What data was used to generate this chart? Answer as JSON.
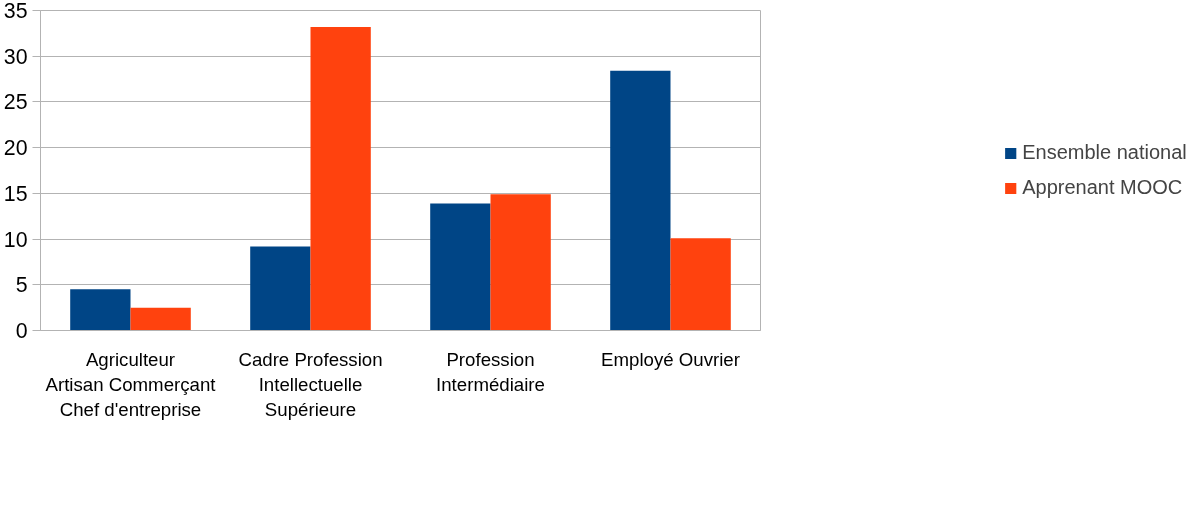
{
  "chart_data": {
    "type": "bar",
    "categories": [
      "Agriculteur Artisan Commerçant Chef d'entreprise",
      "Cadre Profession Intellectuelle Supérieure",
      "Profession Intermédiaire",
      "Employé Ouvrier"
    ],
    "series": [
      {
        "name": "Ensemble national",
        "color": "#004586",
        "values": [
          4.5,
          9.2,
          13.9,
          28.4
        ]
      },
      {
        "name": "Apprenant MOOC",
        "color": "#ff420e",
        "values": [
          2.5,
          33.2,
          14.9,
          10.1
        ]
      }
    ],
    "ylim": [
      0,
      35
    ],
    "yticks": [
      0,
      5,
      10,
      15,
      20,
      25,
      30,
      35
    ],
    "grid": "y",
    "legend": "right"
  }
}
